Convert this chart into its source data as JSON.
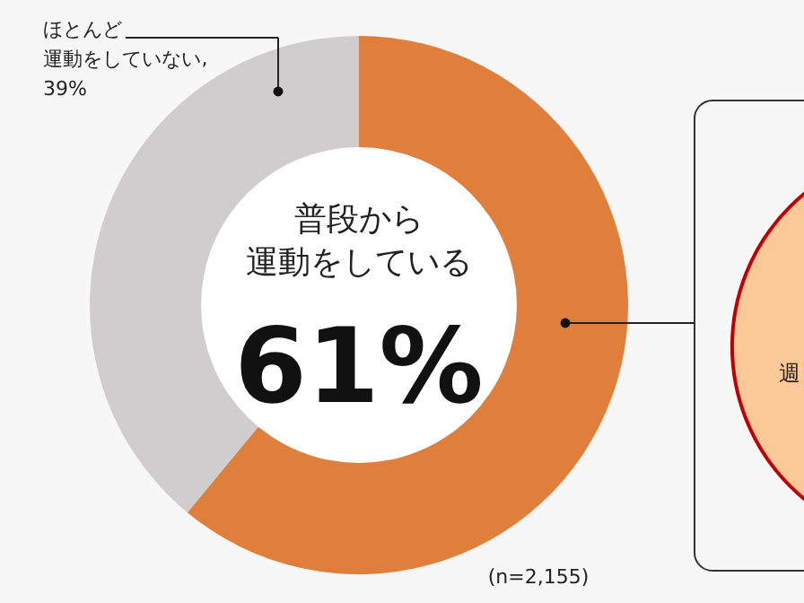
{
  "chart_data": {
    "type": "donut",
    "categories": [
      "普段から運動をしている",
      "ほとんど運動をしていない"
    ],
    "values": [
      61,
      39
    ],
    "colors": [
      "#e07f3c",
      "#cfcdcd"
    ],
    "value_labels": [
      "61%",
      "39%"
    ],
    "annotations": [
      "(n=2,155)",
      "週",
      ","
    ]
  }
}
